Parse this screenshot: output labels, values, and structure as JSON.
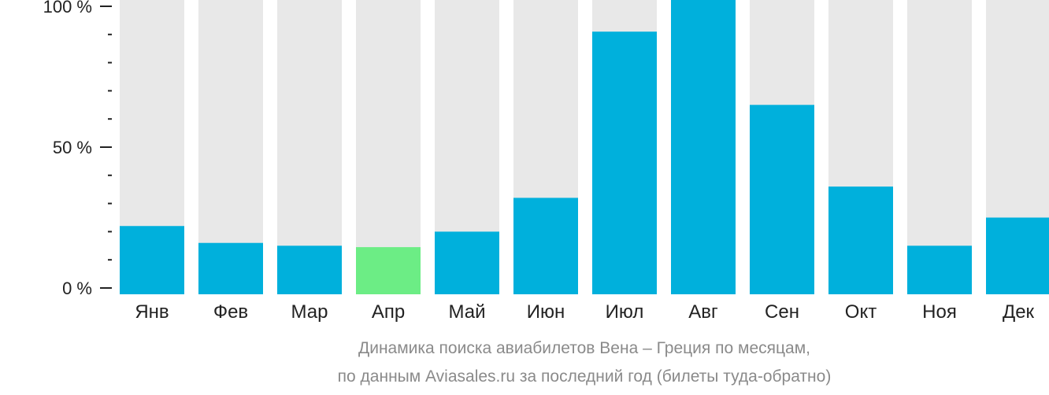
{
  "chart_data": {
    "type": "bar",
    "categories": [
      "Янв",
      "Фев",
      "Мар",
      "Апр",
      "Май",
      "Июн",
      "Июл",
      "Авг",
      "Сен",
      "Окт",
      "Ноя",
      "Дек"
    ],
    "values": [
      22,
      16,
      15,
      14.5,
      20,
      32,
      91,
      104,
      65,
      36,
      15,
      25
    ],
    "highlight_index": 3,
    "ylim": [
      0,
      100
    ],
    "yticks": [
      {
        "value": 100,
        "label": "100 %"
      },
      {
        "value": 50,
        "label": "50 %"
      },
      {
        "value": 0,
        "label": "0 %"
      }
    ],
    "minor_ticks": [
      10,
      20,
      30,
      40,
      60,
      70,
      80,
      90
    ],
    "grid": false,
    "colors": {
      "bar": "#00b0dc",
      "highlight": "#6ced85",
      "background_bar": "#e8e8e8",
      "axis": "#222222"
    }
  },
  "caption": {
    "line1": "Динамика поиска авиабилетов Вена – Греция по месяцам,",
    "line2": "по данным Aviasales.ru за последний год (билеты туда-обратно)"
  }
}
